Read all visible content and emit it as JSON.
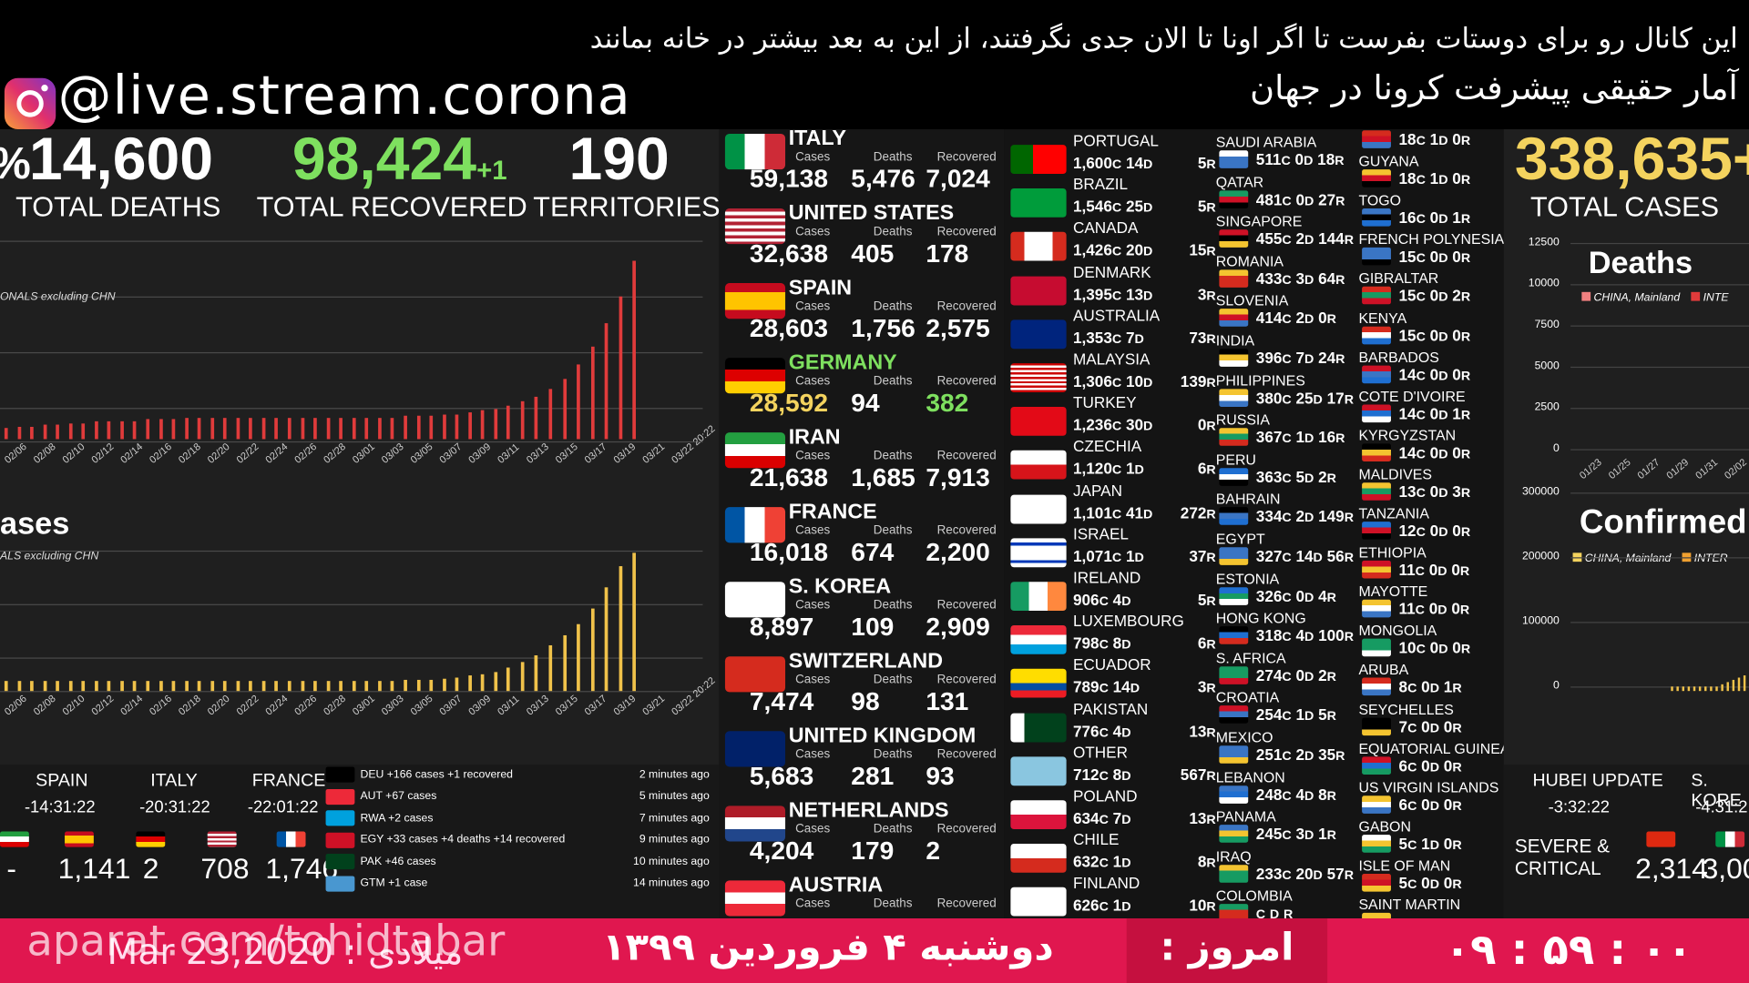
{
  "header": {
    "persian_line1": "این کانال رو برای دوستات بفرست تا اگر اونا تا الان جدی نگرفتند، از این به بعد بیشتر در خانه بمانند",
    "persian_line2": "آمار حقیقی پیشرفت کرونا در جهان",
    "handle": "@live.stream.corona"
  },
  "stats": {
    "partial_prefix": "%",
    "total_deaths": "14,600",
    "total_deaths_label": "TOTAL DEATHS",
    "total_recovered": "98,424",
    "recovered_delta": "+1",
    "total_recovered_label": "TOTAL RECOVERED",
    "territories": "190",
    "territories_label": "TERRITORIES",
    "total_cases": "338,635",
    "total_cases_suffix": "+",
    "total_cases_label": "TOTAL CASES"
  },
  "left_charts": {
    "top_legend": "ONALS excluding CHN",
    "bottom_title": "ases",
    "bottom_legend": "ALS excluding CHN",
    "dates": [
      "02/06",
      "02/08",
      "02/10",
      "02/12",
      "02/14",
      "02/16",
      "02/18",
      "02/20",
      "02/22",
      "02/24",
      "02/26",
      "02/28",
      "03/01",
      "03/03",
      "03/05",
      "03/07",
      "03/09",
      "03/11",
      "03/13",
      "03/15",
      "03/17",
      "03/19",
      "03/21",
      "03/22 20:22"
    ],
    "deaths_bar_levels": [
      0.06,
      0.07,
      0.07,
      0.08,
      0.08,
      0.09,
      0.09,
      0.1,
      0.1,
      0.1,
      0.1,
      0.11,
      0.11,
      0.11,
      0.12,
      0.12,
      0.12,
      0.12,
      0.12,
      0.12,
      0.12,
      0.12,
      0.12,
      0.12,
      0.12,
      0.12,
      0.12,
      0.12,
      0.12,
      0.12,
      0.12,
      0.13,
      0.13,
      0.13,
      0.14,
      0.14,
      0.15,
      0.16,
      0.17,
      0.19,
      0.21,
      0.24,
      0.28,
      0.34,
      0.42,
      0.52,
      0.65,
      0.8,
      1.0
    ],
    "cases_bar_levels": [
      0.07,
      0.07,
      0.07,
      0.07,
      0.07,
      0.07,
      0.07,
      0.07,
      0.07,
      0.07,
      0.07,
      0.07,
      0.07,
      0.07,
      0.07,
      0.07,
      0.07,
      0.07,
      0.07,
      0.07,
      0.07,
      0.07,
      0.07,
      0.07,
      0.07,
      0.07,
      0.07,
      0.07,
      0.07,
      0.07,
      0.07,
      0.08,
      0.08,
      0.08,
      0.09,
      0.1,
      0.11,
      0.12,
      0.14,
      0.17,
      0.21,
      0.26,
      0.33,
      0.4,
      0.48,
      0.6,
      0.75,
      0.9,
      1.0
    ]
  },
  "updates": [
    {
      "name": "SPAIN",
      "time": "-14:31:22"
    },
    {
      "name": "ITALY",
      "time": "-20:31:22"
    },
    {
      "name": "FRANCE",
      "time": "-22:01:22"
    }
  ],
  "bottom_counts": [
    "-",
    "1,141",
    "2",
    "708",
    "1,746"
  ],
  "feed": [
    {
      "text": "DEU +166 cases +1 recovered",
      "time": "2 minutes ago"
    },
    {
      "text": "AUT +67 cases",
      "time": "5 minutes ago"
    },
    {
      "text": "RWA +2 cases",
      "time": "7 minutes ago"
    },
    {
      "text": "EGY +33 cases +4 deaths +14 recovered",
      "time": "9 minutes ago"
    },
    {
      "text": "PAK +46 cases",
      "time": "10 minutes ago"
    },
    {
      "text": "GTM +1 case",
      "time": "14 minutes ago"
    }
  ],
  "labels": {
    "cases": "Cases",
    "deaths": "Deaths",
    "recovered": "Recovered"
  },
  "countries": [
    {
      "name": "ITALY",
      "cases": "59,138",
      "deaths": "5,476",
      "recovered": "7,024"
    },
    {
      "name": "UNITED STATES",
      "cases": "32,638",
      "deaths": "405",
      "recovered": "178"
    },
    {
      "name": "SPAIN",
      "cases": "28,603",
      "deaths": "1,756",
      "recovered": "2,575"
    },
    {
      "name": "GERMANY",
      "cases": "28,592",
      "deaths": "94",
      "recovered": "382"
    },
    {
      "name": "IRAN",
      "cases": "21,638",
      "deaths": "1,685",
      "recovered": "7,913"
    },
    {
      "name": "FRANCE",
      "cases": "16,018",
      "deaths": "674",
      "recovered": "2,200"
    },
    {
      "name": "S. KOREA",
      "cases": "8,897",
      "deaths": "109",
      "recovered": "2,909"
    },
    {
      "name": "SWITZERLAND",
      "cases": "7,474",
      "deaths": "98",
      "recovered": "131"
    },
    {
      "name": "UNITED KINGDOM",
      "cases": "5,683",
      "deaths": "281",
      "recovered": "93"
    },
    {
      "name": "NETHERLANDS",
      "cases": "4,204",
      "deaths": "179",
      "recovered": "2"
    },
    {
      "name": "AUSTRIA",
      "cases": "",
      "deaths": "",
      "recovered": ""
    }
  ],
  "mid_countries": [
    {
      "name": "PORTUGAL",
      "c": "1,600",
      "d": "14",
      "r": "5"
    },
    {
      "name": "BRAZIL",
      "c": "1,546",
      "d": "25",
      "r": "5"
    },
    {
      "name": "CANADA",
      "c": "1,426",
      "d": "20",
      "r": "15"
    },
    {
      "name": "DENMARK",
      "c": "1,395",
      "d": "13",
      "r": "3"
    },
    {
      "name": "AUSTRALIA",
      "c": "1,353",
      "d": "7",
      "r": "73"
    },
    {
      "name": "MALAYSIA",
      "c": "1,306",
      "d": "10",
      "r": "139"
    },
    {
      "name": "TURKEY",
      "c": "1,236",
      "d": "30",
      "r": "0"
    },
    {
      "name": "CZECHIA",
      "c": "1,120",
      "d": "1",
      "r": "6"
    },
    {
      "name": "JAPAN",
      "c": "1,101",
      "d": "41",
      "r": "272"
    },
    {
      "name": "ISRAEL",
      "c": "1,071",
      "d": "1",
      "r": "37"
    },
    {
      "name": "IRELAND",
      "c": "906",
      "d": "4",
      "r": "5"
    },
    {
      "name": "LUXEMBOURG",
      "c": "798",
      "d": "8",
      "r": "6"
    },
    {
      "name": "ECUADOR",
      "c": "789",
      "d": "14",
      "r": "3"
    },
    {
      "name": "PAKISTAN",
      "c": "776",
      "d": "4",
      "r": "13"
    },
    {
      "name": "OTHER",
      "c": "712",
      "d": "8",
      "r": "567"
    },
    {
      "name": "POLAND",
      "c": "634",
      "d": "7",
      "r": "13"
    },
    {
      "name": "CHILE",
      "c": "632",
      "d": "1",
      "r": "8"
    },
    {
      "name": "FINLAND",
      "c": "626",
      "d": "1",
      "r": "10"
    }
  ],
  "col3": [
    {
      "name": "SAUDI ARABIA",
      "c": "511",
      "d": "0",
      "r": "18"
    },
    {
      "name": "QATAR",
      "c": "481",
      "d": "0",
      "r": "27"
    },
    {
      "name": "SINGAPORE",
      "c": "455",
      "d": "2",
      "r": "144"
    },
    {
      "name": "ROMANIA",
      "c": "433",
      "d": "3",
      "r": "64"
    },
    {
      "name": "SLOVENIA",
      "c": "414",
      "d": "2",
      "r": "0"
    },
    {
      "name": "INDIA",
      "c": "396",
      "d": "7",
      "r": "24"
    },
    {
      "name": "PHILIPPINES",
      "c": "380",
      "d": "25",
      "r": "17"
    },
    {
      "name": "RUSSIA",
      "c": "367",
      "d": "1",
      "r": "16"
    },
    {
      "name": "PERU",
      "c": "363",
      "d": "5",
      "r": "2"
    },
    {
      "name": "BAHRAIN",
      "c": "334",
      "d": "2",
      "r": "149"
    },
    {
      "name": "EGYPT",
      "c": "327",
      "d": "14",
      "r": "56"
    },
    {
      "name": "ESTONIA",
      "c": "326",
      "d": "0",
      "r": "4"
    },
    {
      "name": "HONG KONG",
      "c": "318",
      "d": "4",
      "r": "100"
    },
    {
      "name": "S. AFRICA",
      "c": "274",
      "d": "0",
      "r": "2"
    },
    {
      "name": "CROATIA",
      "c": "254",
      "d": "1",
      "r": "5"
    },
    {
      "name": "MEXICO",
      "c": "251",
      "d": "2",
      "r": "35"
    },
    {
      "name": "LEBANON",
      "c": "248",
      "d": "4",
      "r": "8"
    },
    {
      "name": "PANAMA",
      "c": "245",
      "d": "3",
      "r": "1"
    },
    {
      "name": "IRAQ",
      "c": "233",
      "d": "20",
      "r": "57"
    },
    {
      "name": "COLOMBIA",
      "c": "",
      "d": "",
      "r": ""
    }
  ],
  "col4": [
    {
      "name": "",
      "c": "18",
      "d": "1",
      "r": "0"
    },
    {
      "name": "GUYANA",
      "c": "18",
      "d": "1",
      "r": "0"
    },
    {
      "name": "TOGO",
      "c": "16",
      "d": "0",
      "r": "1"
    },
    {
      "name": "FRENCH POLYNESIA",
      "c": "15",
      "d": "0",
      "r": "0"
    },
    {
      "name": "GIBRALTAR",
      "c": "15",
      "d": "0",
      "r": "2"
    },
    {
      "name": "KENYA",
      "c": "15",
      "d": "0",
      "r": "0"
    },
    {
      "name": "BARBADOS",
      "c": "14",
      "d": "0",
      "r": "0"
    },
    {
      "name": "COTE D'IVOIRE",
      "c": "14",
      "d": "0",
      "r": "1"
    },
    {
      "name": "KYRGYZSTAN",
      "c": "14",
      "d": "0",
      "r": "0"
    },
    {
      "name": "MALDIVES",
      "c": "13",
      "d": "0",
      "r": "3"
    },
    {
      "name": "TANZANIA",
      "c": "12",
      "d": "0",
      "r": "0"
    },
    {
      "name": "ETHIOPIA",
      "c": "11",
      "d": "0",
      "r": "0"
    },
    {
      "name": "MAYOTTE",
      "c": "11",
      "d": "0",
      "r": "0"
    },
    {
      "name": "MONGOLIA",
      "c": "10",
      "d": "0",
      "r": "0"
    },
    {
      "name": "ARUBA",
      "c": "8",
      "d": "0",
      "r": "1"
    },
    {
      "name": "SEYCHELLES",
      "c": "7",
      "d": "0",
      "r": "0"
    },
    {
      "name": "EQUATORIAL GUINEA",
      "c": "6",
      "d": "0",
      "r": "0"
    },
    {
      "name": "US VIRGIN ISLANDS",
      "c": "6",
      "d": "0",
      "r": "0"
    },
    {
      "name": "GABON",
      "c": "5",
      "d": "1",
      "r": "0"
    },
    {
      "name": "ISLE OF MAN",
      "c": "5",
      "d": "0",
      "r": "0"
    },
    {
      "name": "SAINT MARTIN",
      "c": "",
      "d": "",
      "r": ""
    }
  ],
  "right_panel": {
    "deaths_title": "Deaths",
    "deaths_legend": [
      "CHINA, Mainland",
      "INTE"
    ],
    "deaths_yticks": [
      "12500",
      "10000",
      "7500",
      "5000",
      "2500",
      "0"
    ],
    "confirmed_title": "Confirmed",
    "confirmed_legend": [
      "CHINA, Mainland",
      "INTER"
    ],
    "confirmed_yticks": [
      "300000",
      "200000",
      "100000",
      "0"
    ],
    "xdates": [
      "01/23",
      "01/25",
      "01/27",
      "01/29",
      "01/31",
      "02/02"
    ],
    "hubei_label": "HUBEI UPDATE",
    "hubei_time": "-3:32:22",
    "skorea_label": "S. KORE",
    "skorea_time": "-4:31:2",
    "severe_label": "SEVERE &",
    "critical_label": "CRITICAL",
    "severe_values": [
      "2,314",
      "3,00"
    ]
  },
  "footer": {
    "aparat": "aparat.com/tohidtabar",
    "date_en": "Mar 23,2020 : میلادی",
    "date_fa": "دوشنبه ۴ فروردین ۱۳۹۹",
    "today": "امروز :",
    "clock": "۰۹ : ۵۹ : ۰۰"
  },
  "colors": {
    "green": "#7ee05f",
    "gold": "#f4d35e",
    "red_bar": "#e03b3b",
    "gold_bar": "#f0c24a",
    "footer": "#e0174f"
  }
}
